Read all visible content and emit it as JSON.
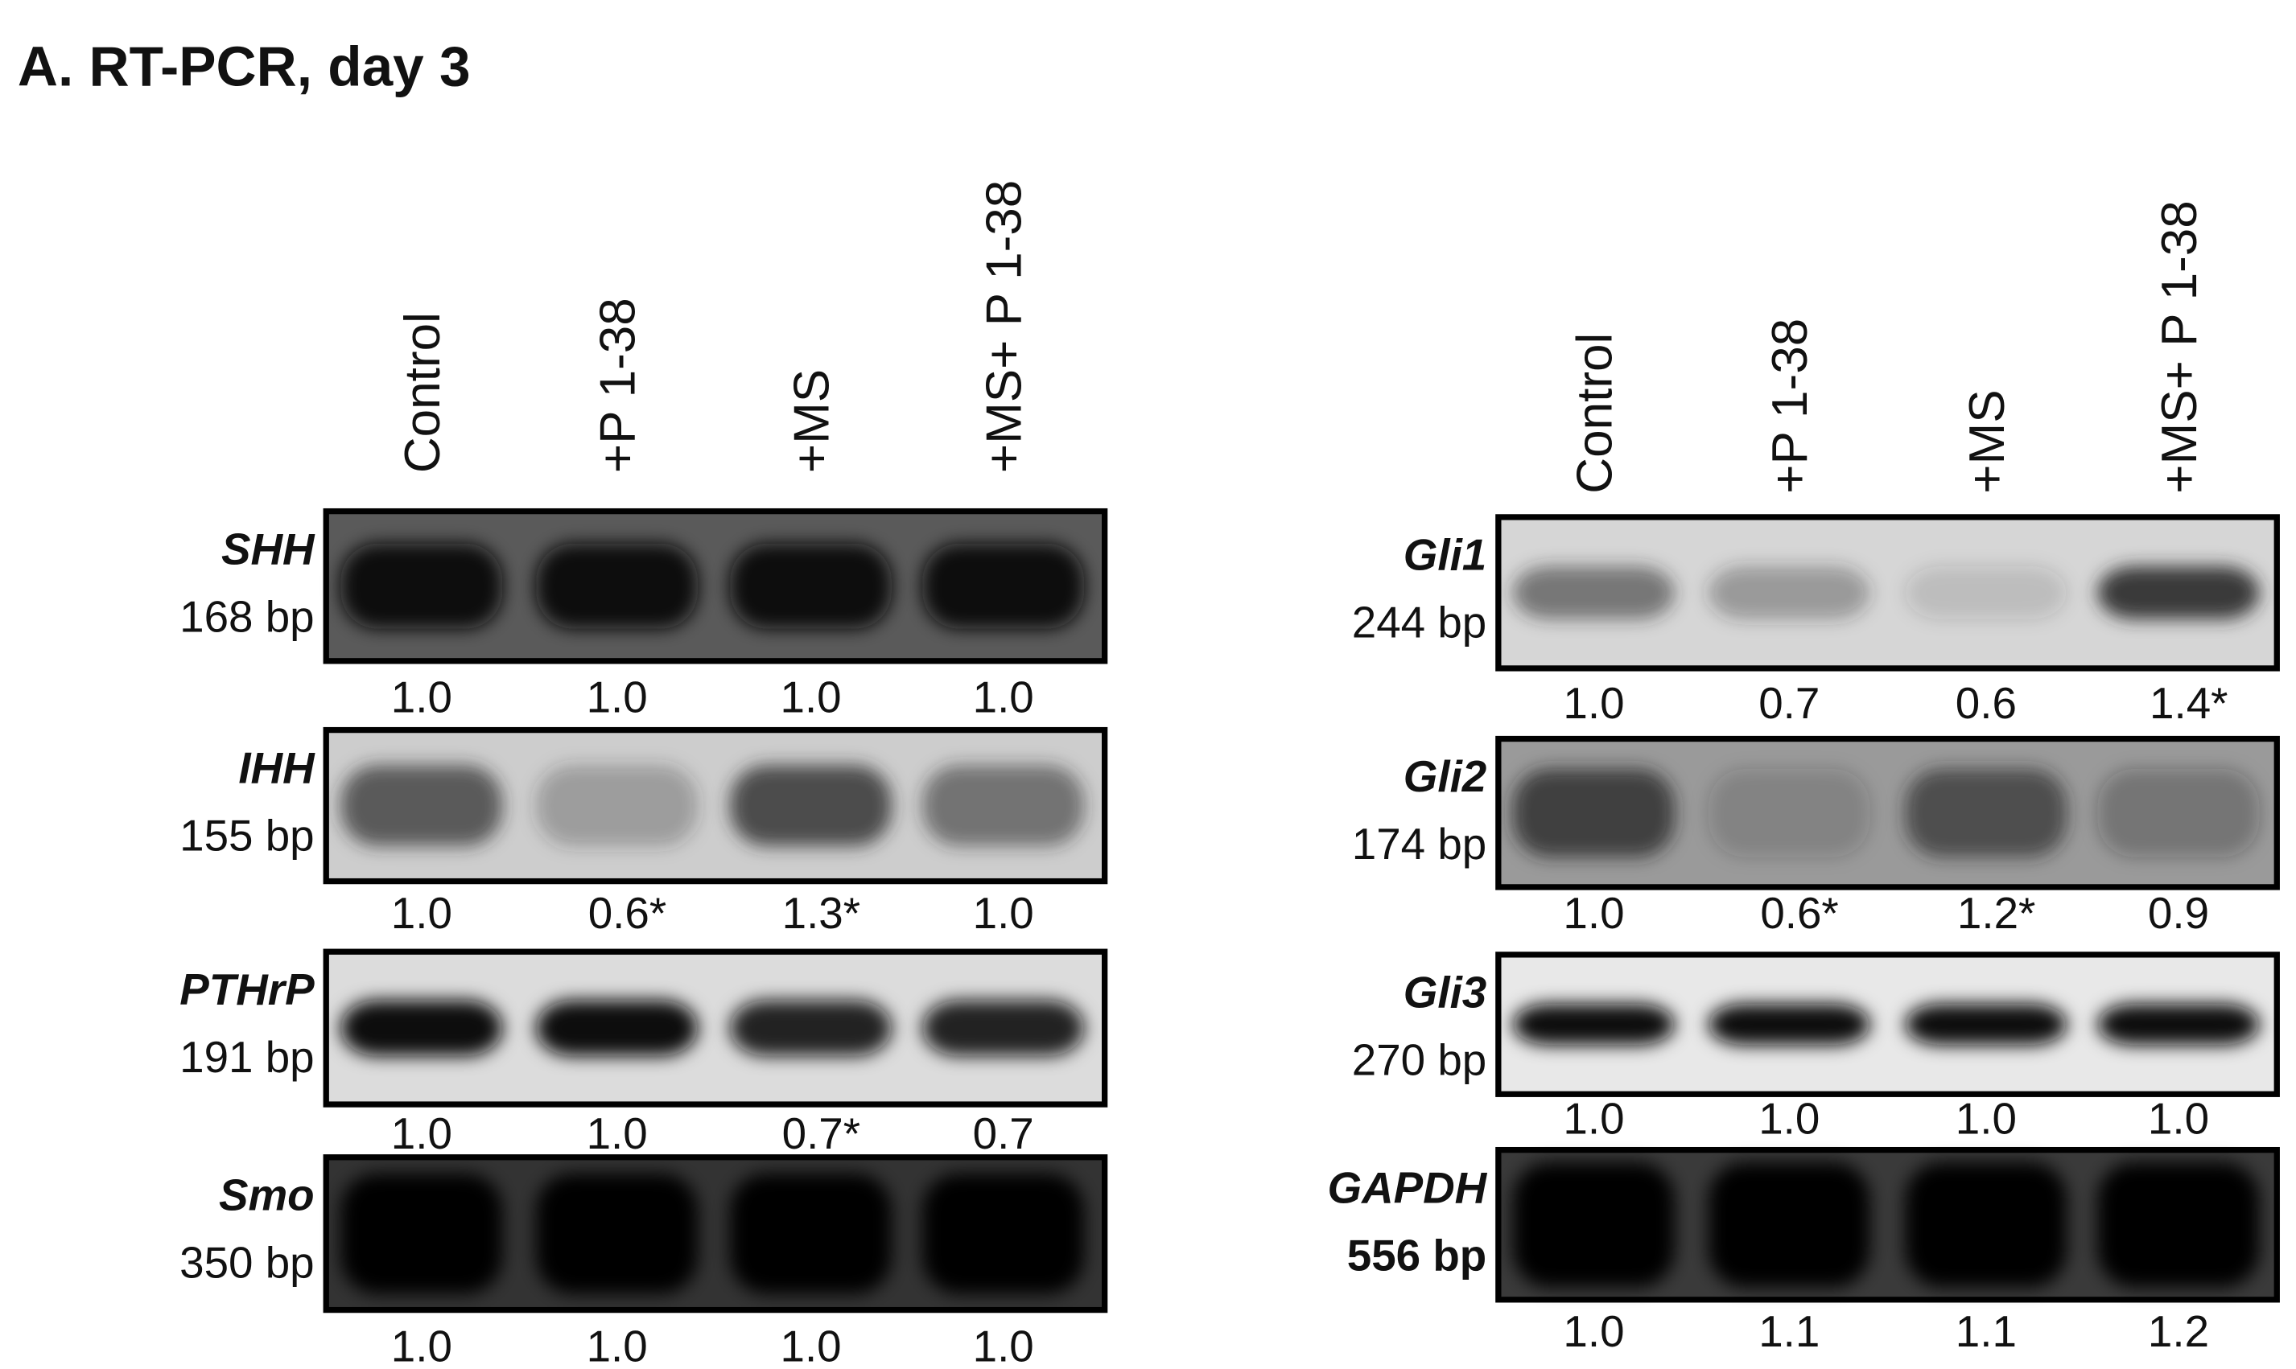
{
  "title": "A. RT-PCR, day 3",
  "panels": [
    {
      "lanes": [
        "Control",
        "+P 1-38",
        "+MS",
        "+MS+ P 1-38"
      ],
      "genes": [
        {
          "name": "SHH",
          "size": "168 bp",
          "values": [
            "1.0",
            "1.0",
            "1.0",
            "1.0"
          ]
        },
        {
          "name": "IHH",
          "size": "155 bp",
          "values": [
            "1.0",
            "0.6*",
            "1.3*",
            "1.0"
          ]
        },
        {
          "name": "PTHrP",
          "size": "191 bp",
          "values": [
            "1.0",
            "1.0",
            "0.7*",
            "0.7"
          ]
        },
        {
          "name": "Smo",
          "size": "350 bp",
          "values": [
            "1.0",
            "1.0",
            "1.0",
            "1.0"
          ]
        }
      ]
    },
    {
      "lanes": [
        "Control",
        "+P 1-38",
        "+MS",
        "+MS+ P 1-38"
      ],
      "genes": [
        {
          "name": "Gli1",
          "size": "244 bp",
          "values": [
            "1.0",
            "0.7",
            "0.6",
            "1.4*"
          ]
        },
        {
          "name": "Gli2",
          "size": "174 bp",
          "values": [
            "1.0",
            "0.6*",
            "1.2*",
            "0.9"
          ]
        },
        {
          "name": "Gli3",
          "size": "270 bp",
          "values": [
            "1.0",
            "1.0",
            "1.0",
            "1.0"
          ]
        },
        {
          "name": "GAPDH",
          "size": "556 bp",
          "values": [
            "1.0",
            "1.1",
            "1.1",
            "1.2"
          ]
        }
      ]
    }
  ]
}
